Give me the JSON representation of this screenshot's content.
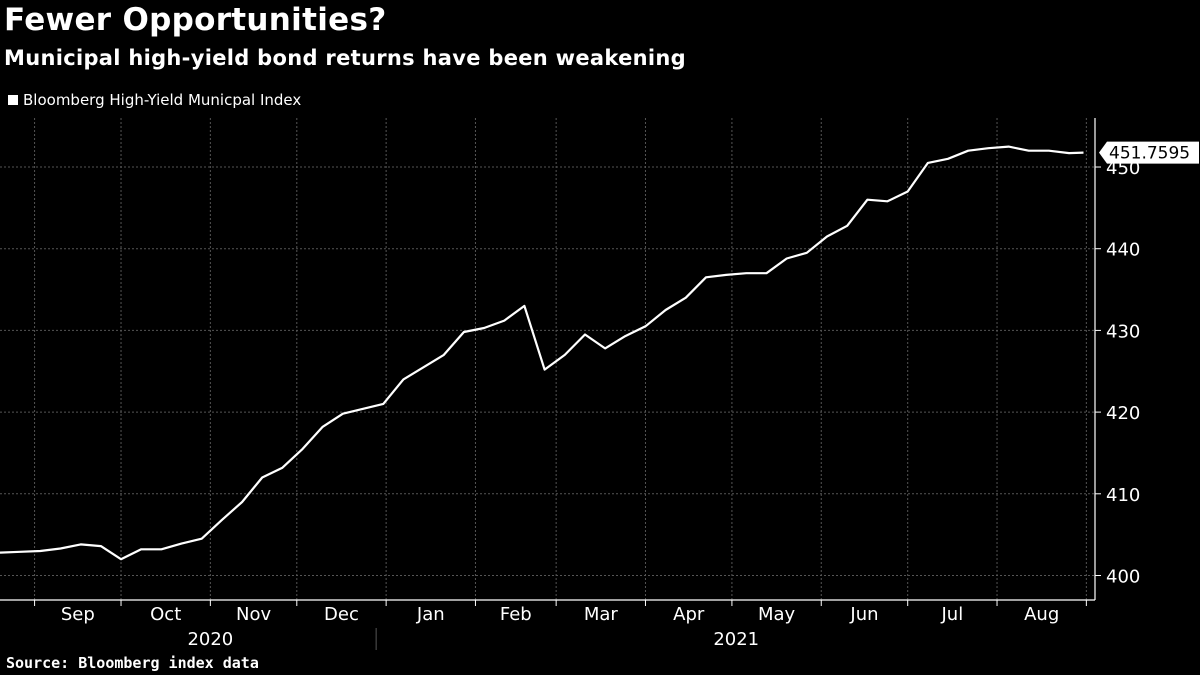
{
  "title": "Fewer Opportunities?",
  "subtitle": "Municipal high-yield bond returns have been weakening",
  "source": "Source: Bloomberg index data",
  "colors": {
    "background": "#000000",
    "line": "#ffffff",
    "grid": "#555555"
  },
  "chart_data": {
    "type": "line",
    "series": [
      {
        "name": "Bloomberg High-Yield Municpal Index",
        "x": [
          "2020-08-20",
          "2020-08-27",
          "2020-09-03",
          "2020-09-10",
          "2020-09-17",
          "2020-09-24",
          "2020-10-01",
          "2020-10-08",
          "2020-10-15",
          "2020-10-22",
          "2020-10-29",
          "2020-11-05",
          "2020-11-12",
          "2020-11-19",
          "2020-11-26",
          "2020-12-03",
          "2020-12-10",
          "2020-12-17",
          "2020-12-24",
          "2020-12-31",
          "2021-01-07",
          "2021-01-14",
          "2021-01-21",
          "2021-01-28",
          "2021-02-04",
          "2021-02-11",
          "2021-02-18",
          "2021-02-25",
          "2021-03-04",
          "2021-03-11",
          "2021-03-18",
          "2021-03-25",
          "2021-04-01",
          "2021-04-08",
          "2021-04-15",
          "2021-04-22",
          "2021-04-29",
          "2021-05-06",
          "2021-05-13",
          "2021-05-20",
          "2021-05-27",
          "2021-06-03",
          "2021-06-10",
          "2021-06-17",
          "2021-06-24",
          "2021-07-01",
          "2021-07-08",
          "2021-07-15",
          "2021-07-22",
          "2021-07-29",
          "2021-08-05",
          "2021-08-12",
          "2021-08-19",
          "2021-08-26",
          "2021-08-31"
        ],
        "values": [
          402.8,
          402.9,
          403.0,
          403.3,
          403.8,
          403.6,
          402.0,
          403.2,
          403.2,
          403.9,
          404.5,
          406.8,
          409.0,
          412.0,
          413.2,
          415.5,
          418.2,
          419.8,
          420.4,
          421.0,
          424.0,
          425.5,
          427.0,
          429.8,
          430.3,
          431.2,
          433.0,
          425.2,
          427.0,
          429.5,
          427.8,
          429.3,
          430.5,
          432.5,
          434.0,
          436.5,
          436.8,
          437.0,
          437.0,
          438.8,
          439.5,
          441.5,
          442.8,
          446.0,
          445.8,
          447.0,
          450.5,
          451.0,
          452.0,
          452.3,
          452.5,
          452.0,
          452.0,
          451.7,
          451.7595
        ]
      }
    ],
    "x_ticks": [
      "Sep",
      "Oct",
      "Nov",
      "Dec",
      "Jan",
      "Feb",
      "Mar",
      "Apr",
      "May",
      "Jun",
      "Jul",
      "Aug"
    ],
    "x_years": [
      "2020",
      "2021"
    ],
    "y_ticks": [
      400,
      410,
      420,
      430,
      440,
      450
    ],
    "ylim": [
      397,
      456
    ],
    "last_value_label": "451.7595",
    "grid": true,
    "legend_position": "top-left"
  }
}
